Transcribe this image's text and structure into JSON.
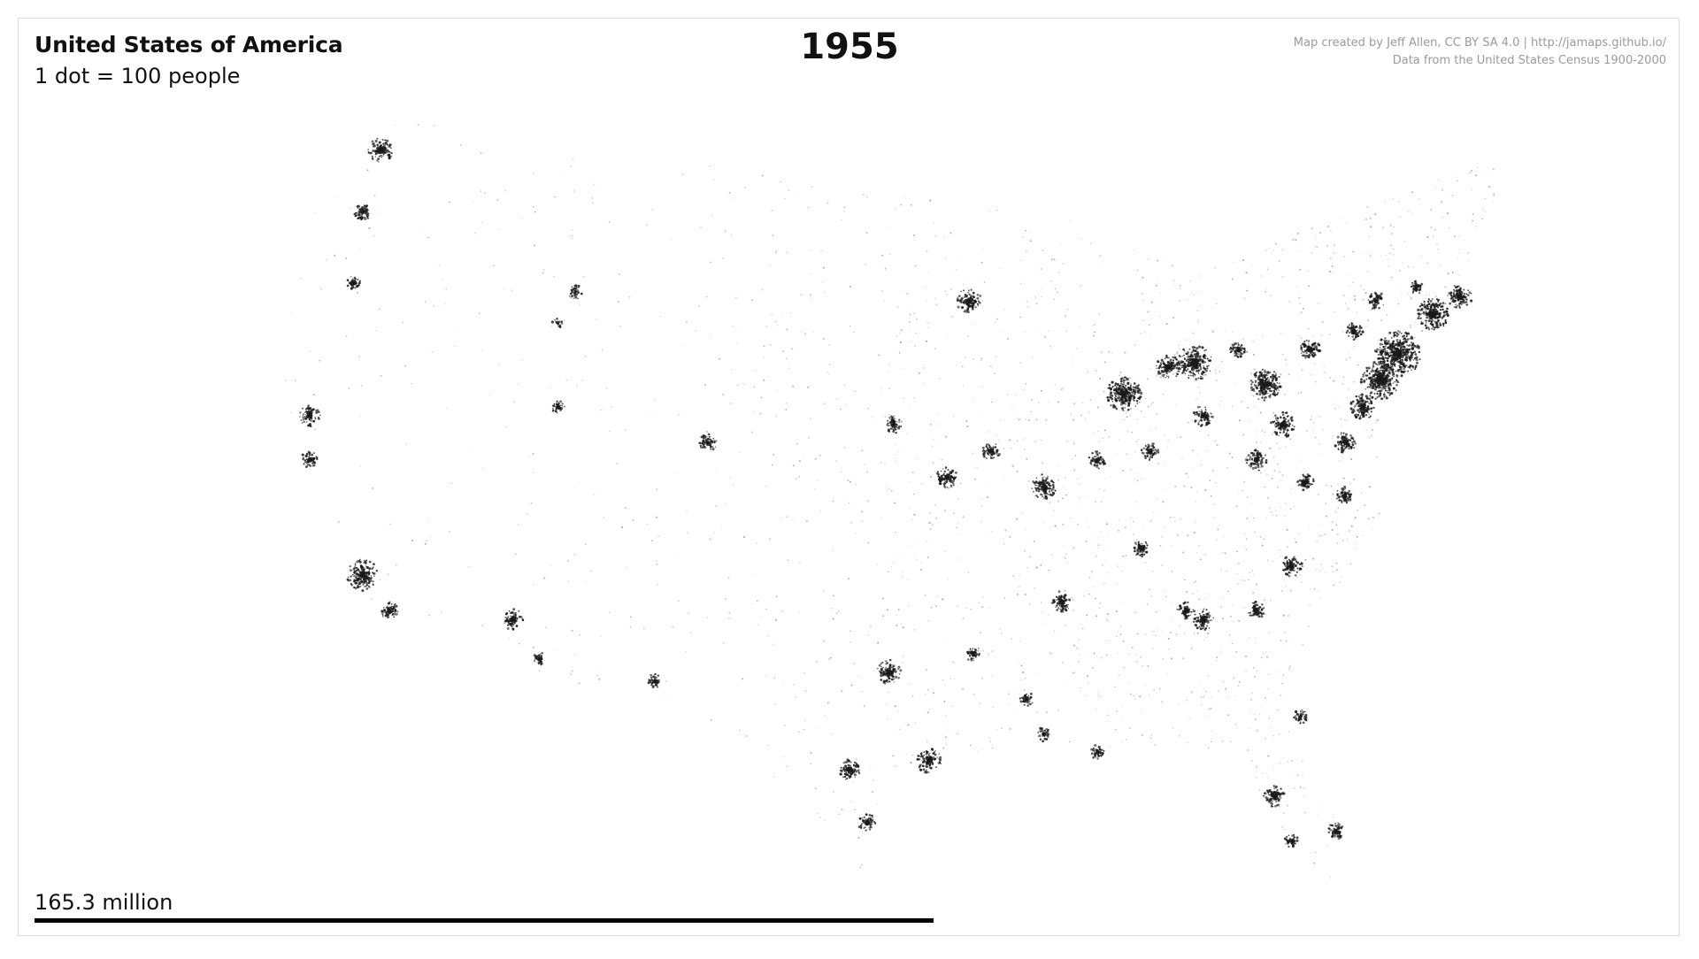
{
  "header": {
    "country": "United States of America",
    "scale_note": "1 dot = 100 people",
    "year": "1955"
  },
  "credits": {
    "line1": "Map created by Jeff Allen, CC BY SA 4.0 | http://jamaps.github.io/",
    "line2": "Data from the United States Census 1900-2000"
  },
  "population": {
    "label": "165.3 million",
    "bar_fraction": 1.0
  },
  "colors": {
    "dot": "#1a1a1a",
    "background": "#ffffff",
    "credits_text": "#9a9a9a"
  }
}
